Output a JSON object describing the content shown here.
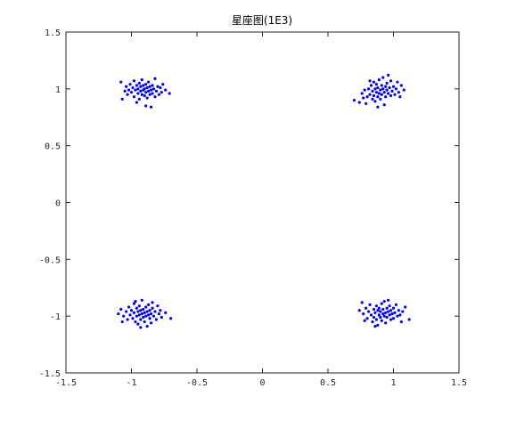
{
  "chart_data": {
    "type": "scatter",
    "title": "星座图(1E3)",
    "xlabel": "",
    "ylabel": "",
    "xlim": [
      -1.5,
      1.5
    ],
    "ylim": [
      -1.5,
      1.5
    ],
    "x_ticks": [
      -1.5,
      -1,
      -0.5,
      0,
      0.5,
      1,
      1.5
    ],
    "y_ticks": [
      -1.5,
      -1,
      -0.5,
      0,
      0.5,
      1,
      1.5
    ],
    "x_tick_labels": [
      "-1.5",
      "-1",
      "-0.5",
      "0",
      "0.5",
      "1",
      "1.5"
    ],
    "y_tick_labels": [
      "-1.5",
      "-1",
      "-0.5",
      "0",
      "0.5",
      "1",
      "1.5"
    ],
    "grid": false,
    "marker_color": "#0000ff",
    "series": [
      {
        "values_note": "",
        "points": [
          [
            -1.08,
            1.06
          ],
          [
            -1.05,
            0.98
          ],
          [
            -1.04,
            1.02
          ],
          [
            -1.03,
            0.95
          ],
          [
            -1.02,
            0.99
          ],
          [
            -1.01,
            1.04
          ],
          [
            -1.0,
            0.97
          ],
          [
            -0.99,
            1.01
          ],
          [
            -0.98,
            0.93
          ],
          [
            -0.98,
            1.07
          ],
          [
            -0.97,
            0.99
          ],
          [
            -0.96,
            1.03
          ],
          [
            -0.95,
            0.96
          ],
          [
            -0.95,
            1.0
          ],
          [
            -0.94,
            0.91
          ],
          [
            -0.94,
            1.05
          ],
          [
            -0.93,
            0.98
          ],
          [
            -0.93,
            1.02
          ],
          [
            -0.92,
            0.95
          ],
          [
            -0.92,
            1.08
          ],
          [
            -0.91,
            0.99
          ],
          [
            -0.91,
            1.03
          ],
          [
            -0.9,
            0.94
          ],
          [
            -0.9,
            1.0
          ],
          [
            -0.89,
            0.97
          ],
          [
            -0.89,
            1.04
          ],
          [
            -0.88,
            0.92
          ],
          [
            -0.88,
            1.01
          ],
          [
            -0.87,
            0.98
          ],
          [
            -0.87,
            1.06
          ],
          [
            -0.86,
            0.95
          ],
          [
            -0.86,
            1.02
          ],
          [
            -0.85,
            0.99
          ],
          [
            -0.85,
            0.84
          ],
          [
            -0.84,
            1.03
          ],
          [
            -0.84,
            0.96
          ],
          [
            -0.83,
            1.0
          ],
          [
            -0.82,
            0.93
          ],
          [
            -0.82,
            1.09
          ],
          [
            -0.81,
            0.98
          ],
          [
            -0.8,
            1.02
          ],
          [
            -0.79,
            0.95
          ],
          [
            -0.78,
            1.01
          ],
          [
            -0.77,
            0.97
          ],
          [
            -0.76,
            1.04
          ],
          [
            -0.74,
            0.99
          ],
          [
            -0.71,
            0.96
          ],
          [
            -1.07,
            0.91
          ],
          [
            -0.96,
            0.88
          ],
          [
            -0.89,
            0.85
          ],
          [
            0.7,
            0.9
          ],
          [
            0.74,
            0.88
          ],
          [
            0.76,
            0.96
          ],
          [
            0.78,
            0.99
          ],
          [
            0.79,
            0.87
          ],
          [
            0.8,
            0.93
          ],
          [
            0.81,
            1.0
          ],
          [
            0.82,
            0.95
          ],
          [
            0.83,
            1.03
          ],
          [
            0.84,
            0.91
          ],
          [
            0.84,
            0.98
          ],
          [
            0.85,
            0.94
          ],
          [
            0.85,
            1.06
          ],
          [
            0.86,
            1.0
          ],
          [
            0.86,
            0.89
          ],
          [
            0.87,
            0.97
          ],
          [
            0.87,
            1.04
          ],
          [
            0.88,
            0.93
          ],
          [
            0.88,
            1.01
          ],
          [
            0.89,
            0.96
          ],
          [
            0.89,
            1.08
          ],
          [
            0.9,
            0.99
          ],
          [
            0.9,
            0.91
          ],
          [
            0.91,
            1.03
          ],
          [
            0.91,
            0.95
          ],
          [
            0.92,
            1.0
          ],
          [
            0.92,
            1.1
          ],
          [
            0.93,
            0.97
          ],
          [
            0.93,
            0.86
          ],
          [
            0.94,
            1.02
          ],
          [
            0.94,
            0.93
          ],
          [
            0.95,
            0.99
          ],
          [
            0.95,
            1.05
          ],
          [
            0.96,
            0.96
          ],
          [
            0.97,
            1.01
          ],
          [
            0.98,
            0.94
          ],
          [
            0.98,
            1.07
          ],
          [
            0.99,
            0.98
          ],
          [
            1.0,
            1.02
          ],
          [
            1.01,
            0.95
          ],
          [
            1.02,
            1.0
          ],
          [
            1.04,
            0.97
          ],
          [
            1.06,
            1.03
          ],
          [
            1.08,
            0.99
          ],
          [
            0.96,
            1.12
          ],
          [
            0.82,
            1.07
          ],
          [
            1.03,
            1.06
          ],
          [
            0.88,
            0.84
          ],
          [
            0.77,
            0.92
          ],
          [
            1.05,
            0.93
          ],
          [
            -1.1,
            -0.98
          ],
          [
            -1.08,
            -0.94
          ],
          [
            -1.06,
            -1.0
          ],
          [
            -1.04,
            -0.96
          ],
          [
            -1.03,
            -1.03
          ],
          [
            -1.02,
            -0.92
          ],
          [
            -1.01,
            -0.99
          ],
          [
            -1.0,
            -0.95
          ],
          [
            -0.99,
            -1.02
          ],
          [
            -0.98,
            -0.89
          ],
          [
            -0.98,
            -0.97
          ],
          [
            -0.97,
            -1.05
          ],
          [
            -0.96,
            -0.93
          ],
          [
            -0.96,
            -1.0
          ],
          [
            -0.95,
            -0.96
          ],
          [
            -0.95,
            -1.07
          ],
          [
            -0.94,
            -0.91
          ],
          [
            -0.94,
            -0.99
          ],
          [
            -0.93,
            -1.03
          ],
          [
            -0.93,
            -0.95
          ],
          [
            -0.92,
            -0.98
          ],
          [
            -0.92,
            -0.86
          ],
          [
            -0.91,
            -1.01
          ],
          [
            -0.91,
            -0.94
          ],
          [
            -0.9,
            -0.97
          ],
          [
            -0.9,
            -1.05
          ],
          [
            -0.89,
            -0.92
          ],
          [
            -0.89,
            -1.0
          ],
          [
            -0.88,
            -0.96
          ],
          [
            -0.88,
            -1.09
          ],
          [
            -0.87,
            -0.99
          ],
          [
            -0.87,
            -0.9
          ],
          [
            -0.86,
            -1.02
          ],
          [
            -0.86,
            -0.95
          ],
          [
            -0.85,
            -0.98
          ],
          [
            -0.85,
            -1.06
          ],
          [
            -0.84,
            -0.93
          ],
          [
            -0.83,
            -1.0
          ],
          [
            -0.82,
            -0.96
          ],
          [
            -0.81,
            -1.03
          ],
          [
            -0.8,
            -0.91
          ],
          [
            -0.79,
            -0.98
          ],
          [
            -0.78,
            -0.95
          ],
          [
            -0.77,
            -1.01
          ],
          [
            -0.74,
            -0.97
          ],
          [
            -0.7,
            -1.02
          ],
          [
            -1.07,
            -1.05
          ],
          [
            -0.97,
            -0.87
          ],
          [
            -0.93,
            -1.1
          ],
          [
            -0.84,
            -0.88
          ],
          [
            0.76,
            -0.88
          ],
          [
            0.77,
            -0.98
          ],
          [
            0.79,
            -0.93
          ],
          [
            0.8,
            -1.02
          ],
          [
            0.81,
            -0.96
          ],
          [
            0.82,
            -0.9
          ],
          [
            0.83,
            -0.99
          ],
          [
            0.84,
            -1.05
          ],
          [
            0.85,
            -0.94
          ],
          [
            0.85,
            -1.01
          ],
          [
            0.86,
            -0.97
          ],
          [
            0.87,
            -0.91
          ],
          [
            0.87,
            -1.03
          ],
          [
            0.88,
            -0.95
          ],
          [
            0.88,
            -1.08
          ],
          [
            0.89,
            -0.99
          ],
          [
            0.89,
            -0.93
          ],
          [
            0.9,
            -1.01
          ],
          [
            0.9,
            -0.96
          ],
          [
            0.91,
            -0.89
          ],
          [
            0.91,
            -1.04
          ],
          [
            0.92,
            -0.98
          ],
          [
            0.92,
            -0.94
          ],
          [
            0.93,
            -1.0
          ],
          [
            0.93,
            -0.87
          ],
          [
            0.94,
            -0.97
          ],
          [
            0.94,
            -1.06
          ],
          [
            0.95,
            -0.93
          ],
          [
            0.95,
            -1.01
          ],
          [
            0.96,
            -0.96
          ],
          [
            0.97,
            -0.99
          ],
          [
            0.97,
            -0.91
          ],
          [
            0.98,
            -1.03
          ],
          [
            0.98,
            -0.95
          ],
          [
            0.99,
            -0.98
          ],
          [
            1.0,
            -0.93
          ],
          [
            1.0,
            -1.02
          ],
          [
            1.01,
            -0.97
          ],
          [
            1.02,
            -0.9
          ],
          [
            1.03,
            -1.0
          ],
          [
            1.04,
            -0.95
          ],
          [
            1.05,
            -0.99
          ],
          [
            1.07,
            -0.96
          ],
          [
            1.09,
            -0.92
          ],
          [
            1.12,
            -1.03
          ],
          [
            0.78,
            -1.04
          ],
          [
            0.86,
            -1.09
          ],
          [
            1.06,
            -1.05
          ],
          [
            0.96,
            -0.86
          ],
          [
            0.74,
            -0.95
          ]
        ]
      }
    ]
  }
}
